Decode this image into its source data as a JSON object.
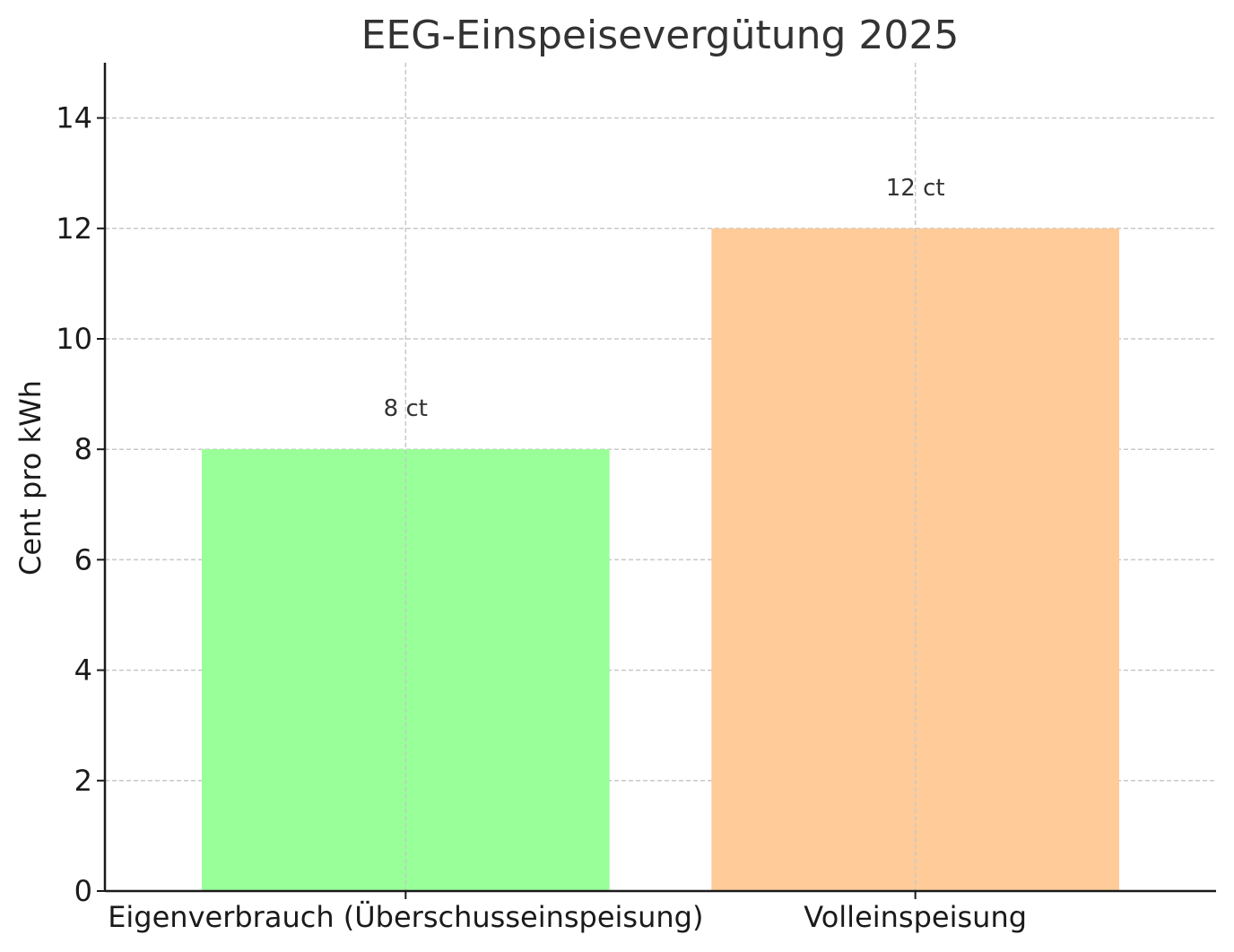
{
  "chart_data": {
    "type": "bar",
    "title": "EEG-Einspeisevergütung 2025",
    "xlabel": "",
    "ylabel": "Cent pro kWh",
    "categories": [
      "Eigenverbrauch (Überschusseinspeisung)",
      "Volleinspeisung"
    ],
    "values": [
      8,
      12
    ],
    "data_labels": [
      "8 ct",
      "12 ct"
    ],
    "bar_colors": [
      "#99ff99",
      "#ffcc99"
    ],
    "ylim": [
      0,
      15
    ],
    "yticks": [
      0,
      2,
      4,
      6,
      8,
      10,
      12,
      14
    ],
    "grid": true,
    "grid_style": "dashed"
  }
}
